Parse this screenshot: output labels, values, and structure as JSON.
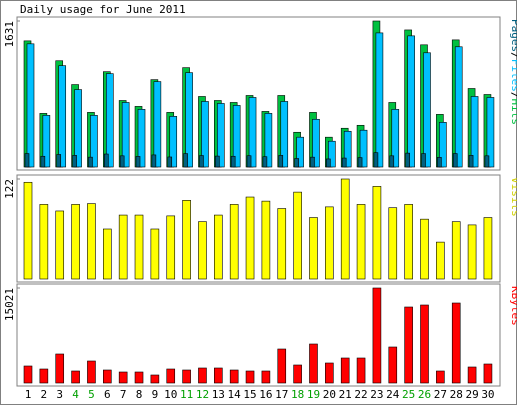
{
  "chart_data": [
    {
      "type": "bar",
      "title": "Daily usage for June 2011",
      "legend_separator": "/",
      "ylim": [
        0,
        1631
      ],
      "yticks": [
        1631
      ],
      "series": [
        {
          "name": "Pages",
          "color": "#006080",
          "values": [
            150,
            120,
            140,
            130,
            110,
            145,
            125,
            118,
            135,
            112,
            150,
            128,
            122,
            120,
            126,
            115,
            130,
            95,
            110,
            90,
            100,
            105,
            160,
            125,
            155,
            150,
            108,
            150,
            130,
            125
          ]
        },
        {
          "name": "Files",
          "color": "#00c0ff",
          "values": [
            1376,
            577,
            1132,
            865,
            577,
            1043,
            721,
            644,
            954,
            566,
            1054,
            732,
            710,
            688,
            777,
            599,
            732,
            333,
            533,
            288,
            399,
            411,
            1498,
            644,
            1465,
            1276,
            499,
            1343,
            788,
            777
          ]
        },
        {
          "name": "Hits",
          "color": "#00c040",
          "values": [
            1409,
            599,
            1187,
            921,
            610,
            1065,
            743,
            677,
            976,
            610,
            1110,
            788,
            743,
            721,
            799,
            621,
            799,
            388,
            610,
            333,
            433,
            466,
            1631,
            721,
            1531,
            1365,
            588,
            1420,
            877,
            810
          ]
        }
      ]
    },
    {
      "type": "bar",
      "ylim": [
        0,
        122
      ],
      "yticks": [
        122
      ],
      "series": [
        {
          "name": "Visits",
          "color": "#ffff00",
          "label_color": "#d0d000",
          "values": [
            118,
            91,
            83,
            91,
            92,
            61,
            78,
            78,
            61,
            77,
            96,
            70,
            78,
            91,
            100,
            95,
            86,
            106,
            75,
            88,
            122,
            91,
            113,
            87,
            91,
            73,
            45,
            70,
            66,
            75
          ]
        }
      ]
    },
    {
      "type": "bar",
      "ylim": [
        0,
        15021
      ],
      "yticks": [
        15021
      ],
      "series": [
        {
          "name": "KBytes",
          "color": "#ff0000",
          "values": [
            2688,
            2213,
            4585,
            1897,
            3478,
            2055,
            1739,
            1739,
            1265,
            2213,
            2055,
            2372,
            2372,
            2055,
            1897,
            1897,
            5375,
            2846,
            6166,
            3162,
            3953,
            3953,
            15021,
            5692,
            12016,
            12332,
            1897,
            12648,
            2530,
            3004
          ]
        }
      ],
      "categories": [
        "1",
        "2",
        "3",
        "4",
        "5",
        "6",
        "7",
        "8",
        "9",
        "10",
        "11",
        "12",
        "13",
        "14",
        "15",
        "16",
        "17",
        "18",
        "19",
        "20",
        "21",
        "22",
        "23",
        "24",
        "25",
        "26",
        "27",
        "28",
        "29",
        "30"
      ],
      "category_colors": [
        "#000000",
        "#000000",
        "#000000",
        "#00a000",
        "#00a000",
        "#000000",
        "#000000",
        "#000000",
        "#000000",
        "#000000",
        "#00a000",
        "#00a000",
        "#000000",
        "#000000",
        "#000000",
        "#000000",
        "#000000",
        "#00a000",
        "#00a000",
        "#000000",
        "#000000",
        "#000000",
        "#000000",
        "#000000",
        "#00a000",
        "#00a000",
        "#000000",
        "#000000",
        "#000000",
        "#000000"
      ]
    }
  ]
}
